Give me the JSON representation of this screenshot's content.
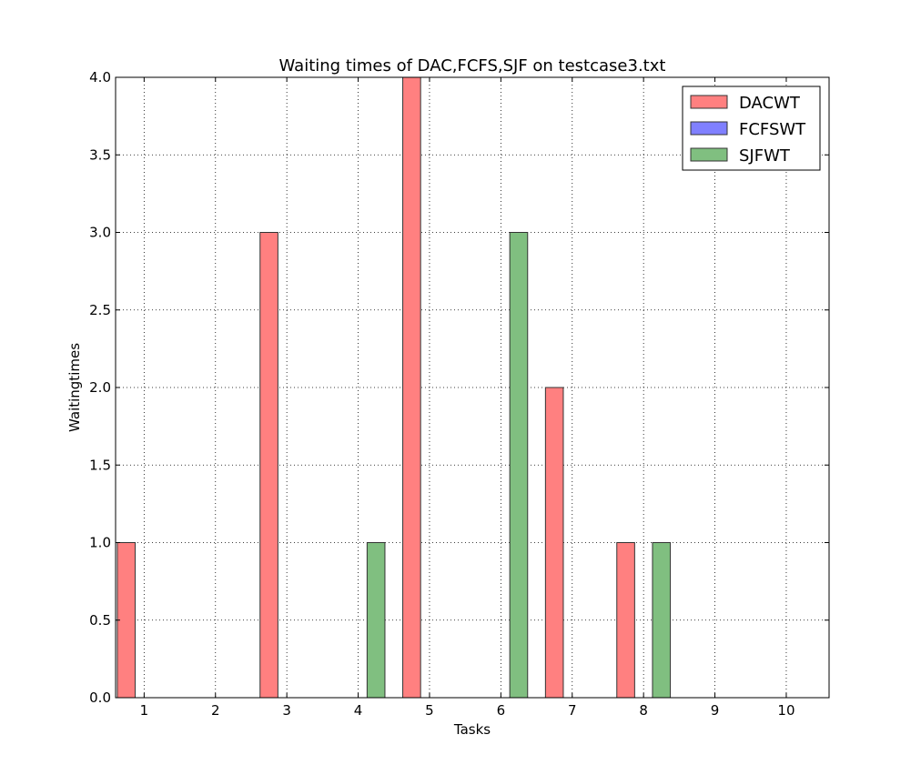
{
  "chart_data": {
    "type": "bar",
    "title": "Waiting times of DAC,FCFS,SJF on testcase3.txt",
    "xlabel": "Tasks",
    "ylabel": "Waitingtimes",
    "categories": [
      "1",
      "2",
      "3",
      "4",
      "5",
      "6",
      "7",
      "8",
      "9",
      "10"
    ],
    "ylim": [
      0,
      4.0
    ],
    "yticks": [
      "0.0",
      "0.5",
      "1.0",
      "1.5",
      "2.0",
      "2.5",
      "3.0",
      "3.5",
      "4.0"
    ],
    "grid": true,
    "legend_position": "top-right",
    "series": [
      {
        "name": "DACWT",
        "color": "#ff8080",
        "values": [
          1,
          0,
          3,
          0,
          4,
          0,
          2,
          1,
          0,
          0
        ]
      },
      {
        "name": "FCFSWT",
        "color": "#8080ff",
        "values": [
          0,
          0,
          0,
          0,
          0,
          0,
          0,
          0,
          0,
          0
        ]
      },
      {
        "name": "SJFWT",
        "color": "#80bf80",
        "values": [
          0,
          0,
          0,
          1,
          0,
          3,
          0,
          1,
          0,
          0
        ]
      }
    ]
  }
}
